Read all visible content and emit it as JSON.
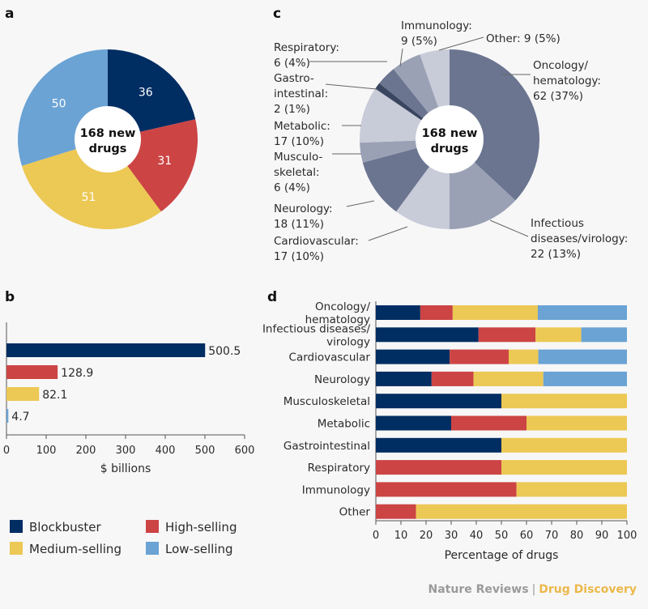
{
  "colors": {
    "blockbuster": "#002d62",
    "high": "#cc4444",
    "medium": "#ecc854",
    "low": "#6aa3d4"
  },
  "panel_labels": {
    "a": "a",
    "b": "b",
    "c": "c",
    "d": "d"
  },
  "footer": {
    "left": "Nature Reviews",
    "sep": "|",
    "right": "Drug Discovery"
  },
  "legend": [
    {
      "key": "blockbuster",
      "label": "Blockbuster"
    },
    {
      "key": "high",
      "label": "High-selling"
    },
    {
      "key": "medium",
      "label": "Medium-selling"
    },
    {
      "key": "low",
      "label": "Low-selling"
    }
  ],
  "chart_data": [
    {
      "panel": "a",
      "type": "pie",
      "center_lines": [
        "168 new",
        "drugs"
      ],
      "slices": [
        {
          "key": "blockbuster",
          "value": 36,
          "label": "36"
        },
        {
          "key": "high",
          "value": 31,
          "label": "31"
        },
        {
          "key": "medium",
          "value": 51,
          "label": "51"
        },
        {
          "key": "low",
          "value": 50,
          "label": "50"
        }
      ]
    },
    {
      "panel": "b",
      "type": "bar",
      "orientation": "horizontal",
      "xlabel": "$ billions",
      "xlim": [
        0,
        600
      ],
      "xticks": [
        "0",
        "100",
        "200",
        "300",
        "400",
        "500",
        "600"
      ],
      "bars": [
        {
          "key": "blockbuster",
          "value": 500.5,
          "label": "500.5"
        },
        {
          "key": "high",
          "value": 128.9,
          "label": "128.9"
        },
        {
          "key": "medium",
          "value": 82.1,
          "label": "82.1"
        },
        {
          "key": "low",
          "value": 4.7,
          "label": "4.7"
        }
      ]
    },
    {
      "panel": "c",
      "type": "pie",
      "center_lines": [
        "168 new",
        "drugs"
      ],
      "slices": [
        {
          "name": "Oncology/hematology",
          "value": 62,
          "color": "#6b7590",
          "label_lines": [
            "Oncology/",
            "hematology:",
            "62 (37%)"
          ]
        },
        {
          "name": "Infectious diseases/virology",
          "value": 22,
          "color": "#9ba1b5",
          "label_lines": [
            "Infectious",
            "diseases/virology:",
            "22 (13%)"
          ]
        },
        {
          "name": "Cardiovascular",
          "value": 17,
          "color": "#c8cbd8",
          "label_lines": [
            "Cardiovascular:",
            "17 (10%)"
          ]
        },
        {
          "name": "Neurology",
          "value": 18,
          "color": "#6b7590",
          "label_lines": [
            "Neurology:",
            "18 (11%)"
          ]
        },
        {
          "name": "Musculoskeletal",
          "value": 6,
          "color": "#9ba1b5",
          "label_lines": [
            "Musculo-",
            "skeletal:",
            "6 (4%)"
          ]
        },
        {
          "name": "Metabolic",
          "value": 17,
          "color": "#c8cbd8",
          "label_lines": [
            "Metabolic:",
            "17 (10%)"
          ]
        },
        {
          "name": "Gastrointestinal",
          "value": 2,
          "color": "#3a4660",
          "label_lines": [
            "Gastro-",
            "intestinal:",
            "2 (1%)"
          ]
        },
        {
          "name": "Respiratory",
          "value": 6,
          "color": "#6b7590",
          "label_lines": [
            "Respiratory:",
            "6 (4%)"
          ]
        },
        {
          "name": "Immunology",
          "value": 9,
          "color": "#9ba1b5",
          "label_lines": [
            "Immunology:",
            "9 (5%)"
          ]
        },
        {
          "name": "Other",
          "value": 9,
          "color": "#c8cbd8",
          "label_lines": [
            "Other: 9 (5%)"
          ]
        }
      ]
    },
    {
      "panel": "d",
      "type": "bar",
      "orientation": "horizontal",
      "stacked": true,
      "xlabel": "Percentage of drugs",
      "xlim": [
        0,
        100
      ],
      "xticks": [
        "0",
        "10",
        "20",
        "30",
        "40",
        "50",
        "60",
        "70",
        "80",
        "90",
        "100"
      ],
      "series_order": [
        "blockbuster",
        "high",
        "medium",
        "low"
      ],
      "rows": [
        {
          "label_lines": [
            "Oncology/",
            "hematology"
          ],
          "values": [
            17.7,
            12.9,
            33.9,
            35.5
          ]
        },
        {
          "label_lines": [
            "Infectious diseases/",
            "virology"
          ],
          "values": [
            40.9,
            22.7,
            18.2,
            18.2
          ]
        },
        {
          "label_lines": [
            "Cardiovascular"
          ],
          "values": [
            29.4,
            23.5,
            11.8,
            35.3
          ]
        },
        {
          "label_lines": [
            "Neurology"
          ],
          "values": [
            22.2,
            16.7,
            27.8,
            33.3
          ]
        },
        {
          "label_lines": [
            "Musculoskeletal"
          ],
          "values": [
            50,
            0,
            50,
            0
          ]
        },
        {
          "label_lines": [
            "Metabolic"
          ],
          "values": [
            30,
            30,
            40,
            0
          ]
        },
        {
          "label_lines": [
            "Gastrointestinal"
          ],
          "values": [
            50,
            0,
            50,
            0
          ]
        },
        {
          "label_lines": [
            "Respiratory"
          ],
          "values": [
            0,
            50,
            50,
            0
          ]
        },
        {
          "label_lines": [
            "Immunology"
          ],
          "values": [
            0,
            56,
            44,
            0
          ]
        },
        {
          "label_lines": [
            "Other"
          ],
          "values": [
            0,
            16,
            84,
            0
          ]
        }
      ]
    }
  ]
}
